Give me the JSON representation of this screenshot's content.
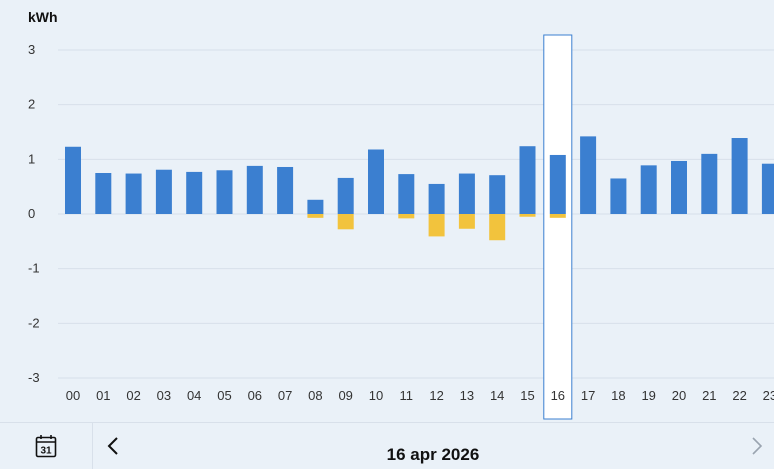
{
  "unit_label": "kWh",
  "footer": {
    "calendar_day": "31",
    "date": "16 apr 2026"
  },
  "colors": {
    "consumption": "#3b7fd0",
    "production": "#f2c33d",
    "grid": "#d7e0ea",
    "selection_border": "#3b7fd0"
  },
  "chart_data": {
    "type": "bar",
    "ylabel": "kWh",
    "ylim": [
      -3,
      3
    ],
    "yticks": [
      3,
      2,
      1,
      0,
      -1,
      -2,
      -3
    ],
    "grid": true,
    "categories": [
      "00",
      "01",
      "02",
      "03",
      "04",
      "05",
      "06",
      "07",
      "08",
      "09",
      "10",
      "11",
      "12",
      "13",
      "14",
      "15",
      "16",
      "17",
      "18",
      "19",
      "20",
      "21",
      "22",
      "23"
    ],
    "series": [
      {
        "key": "consumption",
        "color": "#3b7fd0",
        "values": [
          1.23,
          0.75,
          0.74,
          0.81,
          0.77,
          0.8,
          0.88,
          0.86,
          0.26,
          0.66,
          1.18,
          0.73,
          0.55,
          0.74,
          0.71,
          1.24,
          1.08,
          1.42,
          0.65,
          0.89,
          0.97,
          1.1,
          1.39,
          0.92
        ]
      },
      {
        "key": "production",
        "color": "#f2c33d",
        "values": [
          0,
          0,
          0,
          0,
          0,
          0,
          0,
          0,
          -0.07,
          -0.28,
          0,
          -0.08,
          -0.41,
          -0.27,
          -0.48,
          -0.05,
          -0.07,
          0,
          0,
          0,
          0,
          0,
          0,
          0
        ]
      }
    ],
    "selected_category": "16"
  }
}
